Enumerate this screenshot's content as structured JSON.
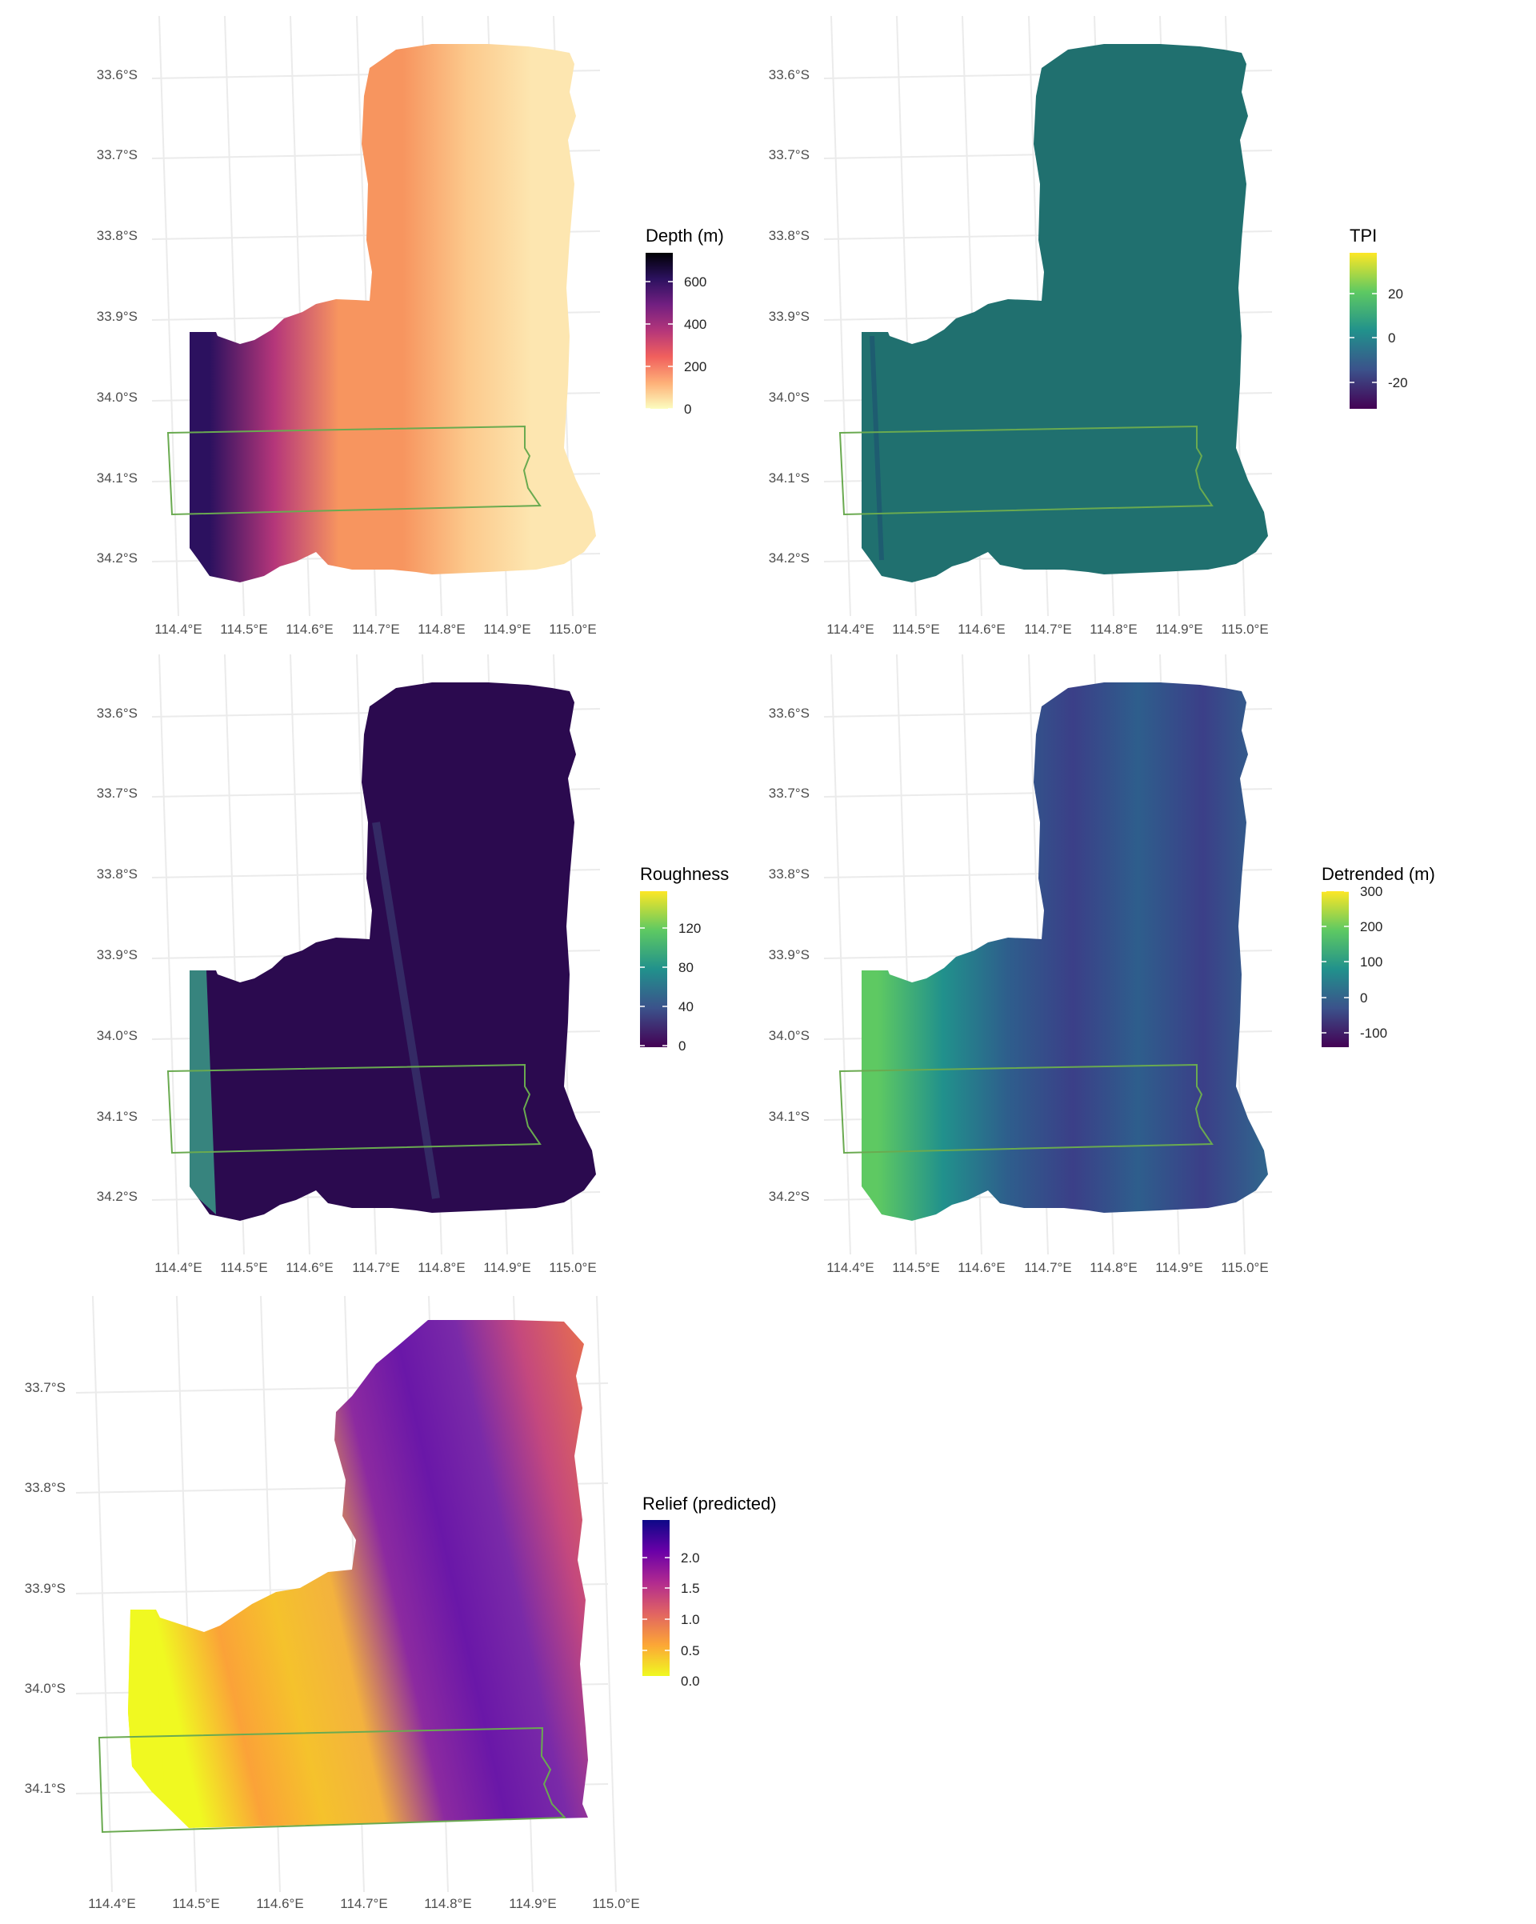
{
  "panels": [
    {
      "id": "depth",
      "legend_title": "Depth (m)",
      "legend_ticks": [
        "600",
        "400",
        "200",
        "0"
      ],
      "palette": [
        "#fcfdbf",
        "#feb078",
        "#f1605d",
        "#b5367a",
        "#721f81",
        "#2c115f",
        "#000004"
      ],
      "lat_labels": [
        "33.6°S",
        "33.7°S",
        "33.8°S",
        "33.9°S",
        "34.0°S",
        "34.1°S",
        "34.2°S"
      ],
      "lon_labels": [
        "114.4°E",
        "114.5°E",
        "114.6°E",
        "114.7°E",
        "114.8°E",
        "114.9°E",
        "115.0°E"
      ]
    },
    {
      "id": "tpi",
      "legend_title": "TPI",
      "legend_ticks": [
        "20",
        "0",
        "-20"
      ],
      "palette": [
        "#440154",
        "#3b528b",
        "#21918c",
        "#5ec962",
        "#fde725"
      ],
      "lat_labels": [
        "33.6°S",
        "33.7°S",
        "33.8°S",
        "33.9°S",
        "34.0°S",
        "34.1°S",
        "34.2°S"
      ],
      "lon_labels": [
        "114.4°E",
        "114.5°E",
        "114.6°E",
        "114.7°E",
        "114.8°E",
        "114.9°E",
        "115.0°E"
      ]
    },
    {
      "id": "roughness",
      "legend_title": "Roughness",
      "legend_ticks": [
        "120",
        "80",
        "40",
        "0"
      ],
      "palette": [
        "#440154",
        "#3b528b",
        "#21918c",
        "#5ec962",
        "#fde725"
      ],
      "lat_labels": [
        "33.6°S",
        "33.7°S",
        "33.8°S",
        "33.9°S",
        "34.0°S",
        "34.1°S",
        "34.2°S"
      ],
      "lon_labels": [
        "114.4°E",
        "114.5°E",
        "114.6°E",
        "114.7°E",
        "114.8°E",
        "114.9°E",
        "115.0°E"
      ]
    },
    {
      "id": "detrended",
      "legend_title": "Detrended (m)",
      "legend_ticks": [
        "300",
        "200",
        "100",
        "0",
        "-100"
      ],
      "palette": [
        "#440154",
        "#3b528b",
        "#21918c",
        "#5ec962",
        "#fde725"
      ],
      "lat_labels": [
        "33.6°S",
        "33.7°S",
        "33.8°S",
        "33.9°S",
        "34.0°S",
        "34.1°S",
        "34.2°S"
      ],
      "lon_labels": [
        "114.4°E",
        "114.5°E",
        "114.6°E",
        "114.7°E",
        "114.8°E",
        "114.9°E",
        "115.0°E"
      ]
    },
    {
      "id": "relief",
      "legend_title": "Relief (predicted)",
      "legend_ticks": [
        "2.0",
        "1.5",
        "1.0",
        "0.5",
        "0.0"
      ],
      "palette": [
        "#f0f921",
        "#fca636",
        "#e16462",
        "#b12a90",
        "#6a00a8",
        "#0d0887"
      ],
      "lat_labels": [
        "33.7°S",
        "33.8°S",
        "33.9°S",
        "34.0°S",
        "34.1°S"
      ],
      "lon_labels": [
        "114.4°E",
        "114.5°E",
        "114.6°E",
        "114.7°E",
        "114.8°E",
        "114.9°E",
        "115.0°E"
      ]
    }
  ],
  "colors": {
    "grid": "#ebebeb",
    "outline": "#6aaa50",
    "axis_text": "#4d4d4d",
    "depth_field": [
      "#f7955f",
      "#fcc98c",
      "#fde6b0"
    ],
    "depth_edge": "#2c115f",
    "tpi_field": "#20706f",
    "rough_field": "#2b0a4f",
    "rough_edge": "#3a9a86",
    "detr_field": [
      "#3b3f88",
      "#2e5e8c",
      "#30668d"
    ],
    "relief_field": [
      "#fba238",
      "#f5c22c",
      "#6a17a8",
      "#8c2aa0"
    ]
  }
}
